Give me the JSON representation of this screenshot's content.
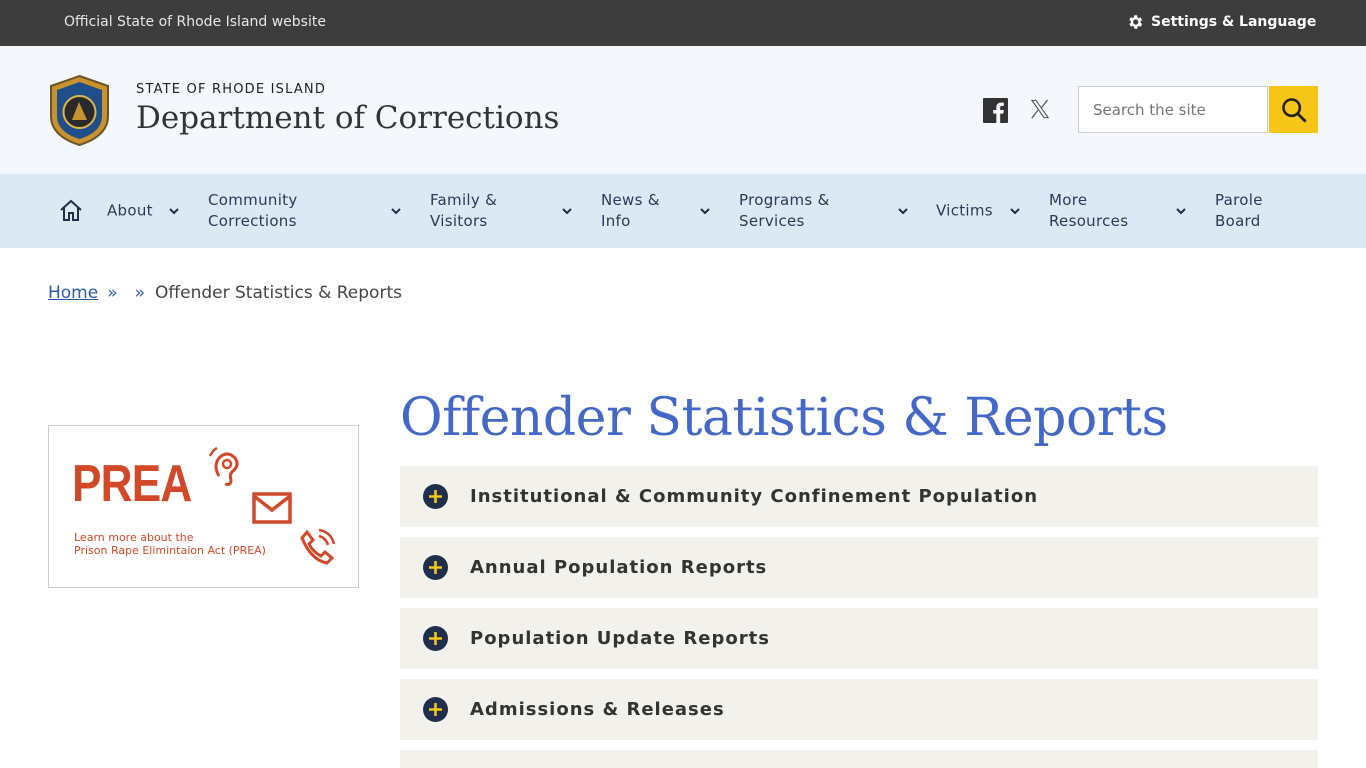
{
  "top_bar": {
    "official": "Official State of Rhode Island website",
    "settings": "Settings & Language"
  },
  "header": {
    "state": "STATE OF RHODE ISLAND",
    "department": "Department of Corrections",
    "search_placeholder": "Search the site"
  },
  "nav": [
    "About",
    "Community Corrections",
    "Family & Visitors",
    "News & Info",
    "Programs & Services",
    "Victims",
    "More Resources",
    "Parole Board"
  ],
  "breadcrumb": {
    "home": "Home",
    "separator": "»",
    "current": "Offender Statistics & Reports"
  },
  "sidebar": {
    "prea_title": "PREA",
    "prea_line_1": "Learn more about the",
    "prea_line_2": "Prison Rape Elimintaion Act (PREA)"
  },
  "page_title": "Offender Statistics & Reports",
  "accordion": [
    "Institutional & Community Confinement Population",
    "Annual Population Reports",
    "Population Update Reports",
    "Admissions & Releases"
  ]
}
